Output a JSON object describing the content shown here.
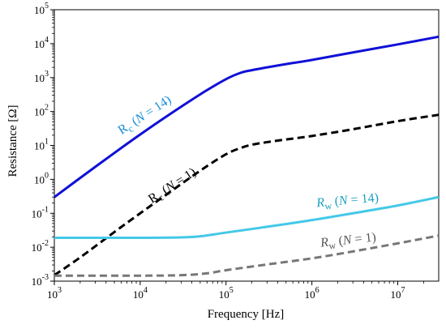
{
  "chart_data": {
    "type": "line",
    "xlabel": "Frequency [Hz]",
    "ylabel": "Resistance [Ω]",
    "xscale": "log",
    "yscale": "log",
    "xlim": [
      1000,
      30000000
    ],
    "ylim": [
      0.001,
      100000
    ],
    "xticks": [
      {
        "value": 1000,
        "label": "10^3"
      },
      {
        "value": 10000,
        "label": "10^4"
      },
      {
        "value": 100000,
        "label": "10^5"
      },
      {
        "value": 1000000,
        "label": "10^6"
      },
      {
        "value": 10000000,
        "label": "10^7"
      }
    ],
    "yticks": [
      {
        "value": 0.001,
        "label": "10^-3"
      },
      {
        "value": 0.01,
        "label": "10^-2"
      },
      {
        "value": 0.1,
        "label": "10^-1"
      },
      {
        "value": 1,
        "label": "10^0"
      },
      {
        "value": 10,
        "label": "10^1"
      },
      {
        "value": 100,
        "label": "10^2"
      },
      {
        "value": 1000,
        "label": "10^3"
      },
      {
        "value": 10000,
        "label": "10^4"
      },
      {
        "value": 100000,
        "label": "10^5"
      }
    ],
    "grid": false,
    "series": [
      {
        "name": "Rc (N = 14)",
        "color": "#1010d8",
        "style": "solid",
        "x": [
          1000,
          2000,
          5000,
          10000,
          20000,
          50000,
          100000,
          150000,
          200000,
          300000,
          500000,
          1000000,
          3000000,
          10000000,
          30000000
        ],
        "y": [
          0.3,
          1.1,
          6.0,
          21,
          70,
          320,
          900,
          1400,
          1650,
          2000,
          2500,
          3300,
          5500,
          9500,
          16000
        ]
      },
      {
        "name": "Rc (N = 1)",
        "color": "#000000",
        "style": "dashed",
        "x": [
          1000,
          2000,
          5000,
          10000,
          20000,
          50000,
          100000,
          150000,
          200000,
          300000,
          500000,
          1000000,
          3000000,
          10000000,
          30000000
        ],
        "y": [
          0.0015,
          0.005,
          0.028,
          0.1,
          0.35,
          1.8,
          5.5,
          8.5,
          10.5,
          12.5,
          15,
          19,
          30,
          52,
          80
        ]
      },
      {
        "name": "Rw (N = 14)",
        "color": "#44c8e8",
        "style": "solid",
        "x": [
          1000,
          10000,
          30000,
          50000,
          100000,
          300000,
          1000000,
          3000000,
          10000000,
          30000000
        ],
        "y": [
          0.019,
          0.019,
          0.0195,
          0.021,
          0.027,
          0.04,
          0.063,
          0.1,
          0.17,
          0.3
        ]
      },
      {
        "name": "Rw (N = 1)",
        "color": "#777777",
        "style": "dashed",
        "x": [
          1000,
          10000,
          30000,
          60000,
          100000,
          300000,
          1000000,
          3000000,
          10000000,
          30000000
        ],
        "y": [
          0.00145,
          0.00145,
          0.0015,
          0.0017,
          0.0021,
          0.0031,
          0.0047,
          0.0075,
          0.013,
          0.022
        ]
      }
    ],
    "annotations": [
      {
        "series": 0,
        "base": "R",
        "sub": "c",
        "rest": " (N = 14)",
        "color": "#1a8fd8",
        "rotation": -33,
        "italic_base": false
      },
      {
        "series": 1,
        "base": "R",
        "sub": "c",
        "rest": " (N = 1)",
        "color": "#000000",
        "rotation": -33,
        "italic_base": false
      },
      {
        "series": 2,
        "base": "R",
        "sub": "w",
        "rest": " (N = 14)",
        "color": "#1a9fc0",
        "rotation": -5,
        "italic_base": true
      },
      {
        "series": 3,
        "base": "R",
        "sub": "w",
        "rest": " (N = 1)",
        "color": "#555555",
        "rotation": -6,
        "italic_base": true
      }
    ]
  }
}
